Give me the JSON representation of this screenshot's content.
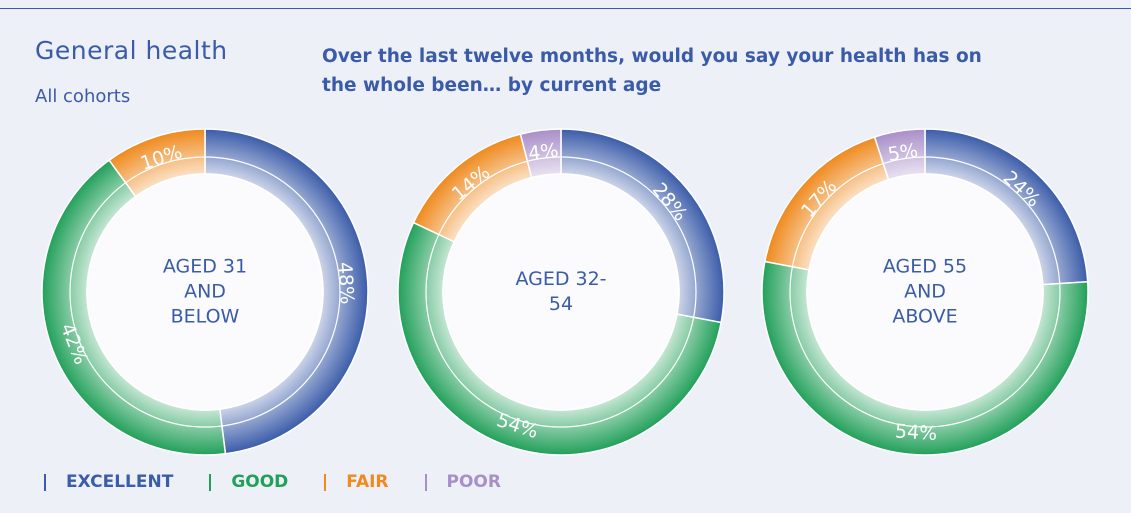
{
  "title": "General health",
  "subtitle": "All cohorts",
  "question": "Over the last twelve months, would you say your health has on the whole been… by current age",
  "categories": [
    "EXCELLENT",
    "GOOD",
    "FAIR",
    "POOR"
  ],
  "colors": [
    "#3b5ca9",
    "#22a05a",
    "#ef8a1e",
    "#a98fc8"
  ],
  "chart_data": [
    {
      "type": "donut",
      "title": "AGED 31 AND BELOW",
      "values": [
        48,
        42,
        10,
        null
      ],
      "value_labels": [
        "48%",
        "42%",
        "10%",
        null
      ]
    },
    {
      "type": "donut",
      "title": "AGED 32-54",
      "values": [
        28,
        54,
        14,
        4
      ],
      "value_labels": [
        "28%",
        "54%",
        "14%",
        "4%"
      ]
    },
    {
      "type": "donut",
      "title": "AGED 55 AND ABOVE",
      "values": [
        24,
        54,
        17,
        5
      ],
      "value_labels": [
        "24%",
        "54%",
        "17%",
        "5%"
      ]
    }
  ]
}
